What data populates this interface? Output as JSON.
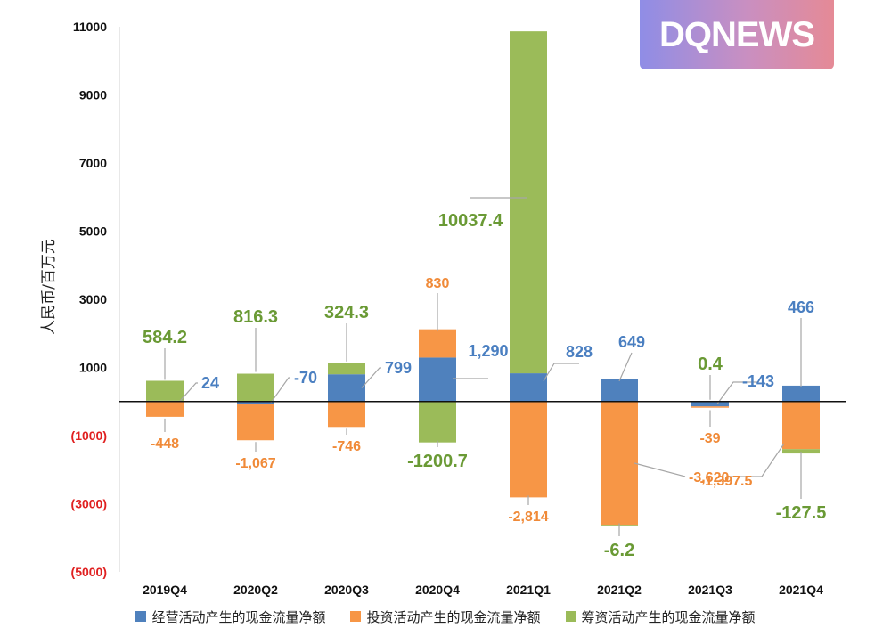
{
  "logo_text": "DQNEWS",
  "chart_data": {
    "type": "bar",
    "stacked": true,
    "ylabel": "人民币/百万元",
    "ylim": [
      -5000,
      11000
    ],
    "yticks": [
      {
        "value": 11000,
        "label": "11000",
        "color": "#111111"
      },
      {
        "value": 9000,
        "label": "9000",
        "color": "#111111"
      },
      {
        "value": 7000,
        "label": "7000",
        "color": "#111111"
      },
      {
        "value": 5000,
        "label": "5000",
        "color": "#111111"
      },
      {
        "value": 3000,
        "label": "3000",
        "color": "#111111"
      },
      {
        "value": 1000,
        "label": "1000",
        "color": "#111111"
      },
      {
        "value": -1000,
        "label": "(1000)",
        "color": "#e02020"
      },
      {
        "value": -3000,
        "label": "(3000)",
        "color": "#e02020"
      },
      {
        "value": -5000,
        "label": "(5000)",
        "color": "#e02020"
      }
    ],
    "categories": [
      "2019Q4",
      "2020Q2",
      "2020Q3",
      "2020Q4",
      "2021Q1",
      "2021Q2",
      "2021Q3",
      "2021Q4"
    ],
    "series": [
      {
        "name": "经营活动产生的现金流量净额",
        "color": "#4f81bd",
        "label_color": "#4a7fc1",
        "values": [
          24,
          -70,
          799,
          1290,
          828,
          649,
          -143,
          466
        ],
        "labels": [
          "24",
          "-70",
          "799",
          "1,290",
          "828",
          "649",
          "-143",
          "466"
        ]
      },
      {
        "name": "投资活动产生的现金流量净额",
        "color": "#f79646",
        "label_color": "#f08a38",
        "values": [
          -448,
          -1067,
          -746,
          830,
          -2814,
          -3620,
          -39,
          -1397.5
        ],
        "labels": [
          "-448",
          "-1,067",
          "-746",
          "830",
          "-2,814",
          "-3,620",
          "-39",
          "-1,397.5"
        ]
      },
      {
        "name": "筹资活动产生的现金流量净额",
        "color": "#9bbb59",
        "label_color": "#6a9a35",
        "values": [
          584.2,
          816.3,
          324.3,
          -1200.7,
          10037.4,
          -6.2,
          0.4,
          -127.5
        ],
        "labels": [
          "584.2",
          "816.3",
          "324.3",
          "-1200.7",
          "10037.4",
          "-6.2",
          "0.4",
          "-127.5"
        ]
      }
    ]
  }
}
